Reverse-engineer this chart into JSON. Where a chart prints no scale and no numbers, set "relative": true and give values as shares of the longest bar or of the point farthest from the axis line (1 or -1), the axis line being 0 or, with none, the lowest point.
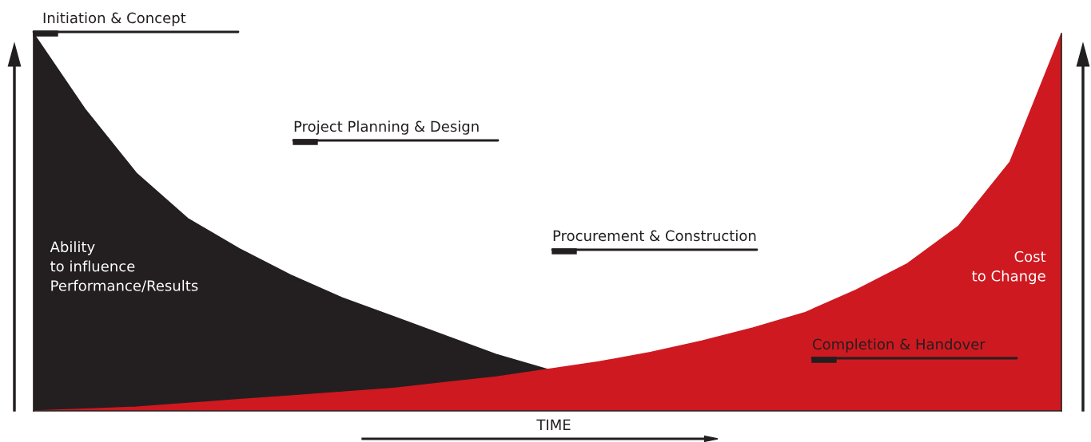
{
  "chart_data": {
    "type": "area",
    "relative": true,
    "xlabel": "TIME",
    "categories": [
      null,
      null,
      null,
      null,
      null,
      null,
      null,
      null,
      null,
      null,
      null,
      null,
      null,
      null,
      null,
      null,
      null,
      null,
      null,
      null,
      null
    ],
    "series": [
      {
        "name": "Ability\nto influence\nPerformance/Results",
        "color": "#231f20",
        "values": [
          1.0,
          0.8,
          0.63,
          0.51,
          0.43,
          0.36,
          0.3,
          0.25,
          0.2,
          0.15,
          0.11,
          null,
          null,
          null,
          null,
          null,
          null,
          null,
          null,
          null,
          null
        ]
      },
      {
        "name": "Cost\nto Change",
        "color": "#cf1920",
        "values": [
          0,
          0.005,
          0.01,
          0.02,
          0.03,
          0.04,
          0.05,
          0.06,
          0.075,
          0.09,
          0.11,
          0.13,
          0.155,
          0.185,
          0.22,
          0.26,
          0.32,
          0.39,
          0.49,
          0.66,
          1.0
        ]
      }
    ],
    "annotations": [
      "Initiation & Concept",
      "Project Planning & Design",
      "Procurement & Construction",
      "Completion & Handover"
    ],
    "legend": false,
    "grid": false
  }
}
